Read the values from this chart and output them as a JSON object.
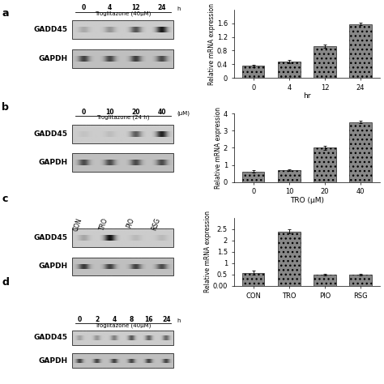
{
  "panel_a_bar": {
    "categories": [
      "0",
      "4",
      "12",
      "24"
    ],
    "values": [
      0.35,
      0.47,
      0.93,
      1.58
    ],
    "errors": [
      0.03,
      0.05,
      0.04,
      0.03
    ],
    "xlabel": "hr",
    "ylabel": "Relative mRNA expression",
    "ylim": [
      0,
      2.0
    ],
    "yticks": [
      0,
      0.4,
      0.8,
      1.2,
      1.6
    ],
    "hatch": "..."
  },
  "panel_b_bar": {
    "categories": [
      "0",
      "10",
      "20",
      "40"
    ],
    "values": [
      0.62,
      0.7,
      2.0,
      3.5
    ],
    "errors": [
      0.05,
      0.06,
      0.1,
      0.08
    ],
    "xlabel": "TRO (μM)",
    "ylabel": "Relative mRNA expression",
    "ylim": [
      0,
      4
    ],
    "yticks": [
      0,
      1,
      2,
      3,
      4
    ],
    "hatch": "..."
  },
  "panel_c_bar": {
    "categories": [
      "CON",
      "TRO",
      "PIO",
      "RSG"
    ],
    "values": [
      0.58,
      2.4,
      0.5,
      0.5
    ],
    "errors": [
      0.08,
      0.1,
      0.05,
      0.05
    ],
    "xlabel": "",
    "ylabel": "Relative mRNA expression",
    "ylim": [
      0.0,
      3.0
    ],
    "yticks": [
      0.0,
      0.5,
      1.0,
      1.5,
      2.0,
      2.5
    ],
    "hatch": "..."
  },
  "background_color": "#f5f5f5",
  "gel_bg": "#c8c8c8",
  "bar_color": "#888888",
  "label_fontsize": 6.5,
  "tick_fontsize": 6,
  "axis_label_fontsize": 6
}
